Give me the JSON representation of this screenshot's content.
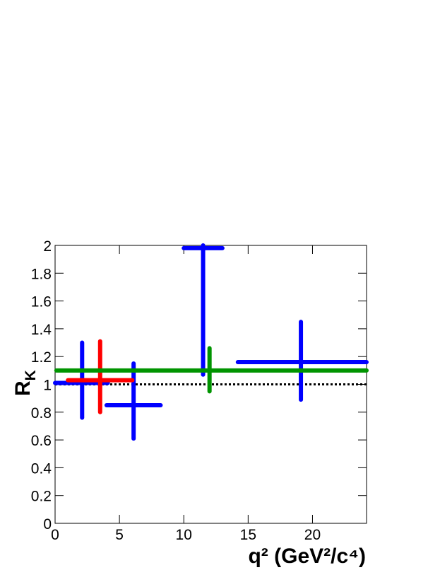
{
  "chart_data": {
    "type": "errorbar",
    "xlabel": "q² (GeV²/c⁴)",
    "ylabel": {
      "text": "R",
      "sub": "K"
    },
    "xlim": [
      0,
      24.2
    ],
    "ylim": [
      0,
      2
    ],
    "xticks": [
      0,
      5,
      10,
      15,
      20
    ],
    "yticks": [
      0,
      0.2,
      0.4,
      0.6,
      0.8,
      1,
      1.2,
      1.4,
      1.6,
      1.8,
      2
    ],
    "reference_line": 1,
    "series": [
      {
        "color": "#0000ff",
        "points": [
          {
            "x": 2.1,
            "x_low": 0,
            "x_high": 4.1,
            "y": 1.01,
            "y_low": 0.76,
            "y_high": 1.3
          },
          {
            "x": 6.1,
            "x_low": 4.0,
            "x_high": 8.2,
            "y": 0.85,
            "y_low": 0.61,
            "y_high": 1.15
          },
          {
            "x": 11.5,
            "x_low": 10.0,
            "x_high": 13.0,
            "y": 1.98,
            "y_low": 1.07,
            "y_high": 2.0
          },
          {
            "x": 19.1,
            "x_low": 14.2,
            "x_high": 24.2,
            "y": 1.16,
            "y_low": 0.89,
            "y_high": 1.45
          }
        ]
      },
      {
        "color": "#ff0000",
        "points": [
          {
            "x": 3.5,
            "x_low": 1.0,
            "x_high": 6.0,
            "y": 1.03,
            "y_low": 0.8,
            "y_high": 1.31
          }
        ]
      },
      {
        "color": "#009400",
        "points": [
          {
            "x": 12.0,
            "x_low": 0.1,
            "x_high": 24.2,
            "y": 1.1,
            "y_low": 0.95,
            "y_high": 1.26
          }
        ]
      }
    ]
  }
}
